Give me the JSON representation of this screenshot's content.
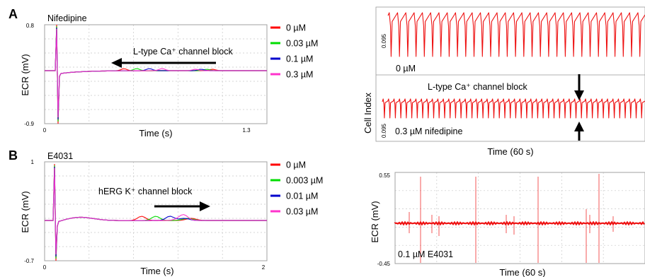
{
  "panels": {
    "a": "A",
    "b": "B"
  },
  "colors": {
    "c0": "#ff0000",
    "c1": "#00dd00",
    "c2": "#0000cc",
    "c3": "#ff33cc",
    "grid": "#c8c8c8",
    "axis": "#808080",
    "trace": "#ee1111"
  },
  "chart_data": [
    {
      "id": "ecr-nifedipine",
      "type": "line",
      "title": "Nifedipine",
      "xlabel": "Time (s)",
      "ylabel": "ECR (mV)",
      "xlim": [
        0,
        1.3
      ],
      "ylim": [
        -0.9,
        0.8
      ],
      "x_ticks": [
        "0",
        "1.3"
      ],
      "y_ticks": [
        "0.8",
        "-0.9"
      ],
      "grid": true,
      "legend_position": "right",
      "annotation": "L-type Ca⁺ channel block",
      "series": [
        {
          "name": "0 µM",
          "color": "#ff0000"
        },
        {
          "name": "0.03 µM",
          "color": "#00dd00"
        },
        {
          "name": "0.1 µM",
          "color": "#0000cc"
        },
        {
          "name": "0.3 µM",
          "color": "#ff33cc"
        }
      ]
    },
    {
      "id": "ecr-e4031",
      "type": "line",
      "title": "E4031",
      "xlabel": "Time (s)",
      "ylabel": "ECR (mV)",
      "xlim": [
        0,
        2
      ],
      "ylim": [
        -0.7,
        1
      ],
      "x_ticks": [
        "0",
        "2"
      ],
      "y_ticks": [
        "1",
        "-0.7"
      ],
      "grid": true,
      "legend_position": "right",
      "annotation": "hERG K⁺ channel block",
      "series": [
        {
          "name": "0 µM",
          "color": "#ff0000"
        },
        {
          "name": "0.003 µM",
          "color": "#00dd00"
        },
        {
          "name": "0.01 µM",
          "color": "#0000cc"
        },
        {
          "name": "0.03 µM",
          "color": "#ff33cc"
        }
      ]
    },
    {
      "id": "cell-index-nifedipine",
      "type": "line",
      "xlabel": "Time (60 s)",
      "ylabel": "Cell Index",
      "panels": [
        {
          "label": "0 µM",
          "y_tick": "0.095",
          "beats": 31
        },
        {
          "label": "0.3 µM nifedipine",
          "y_tick": "0.095",
          "beats": 48
        }
      ],
      "annotation": "L-type Ca⁺ channel block"
    },
    {
      "id": "ecr-e4031-long",
      "type": "line",
      "xlabel": "Time (60 s)",
      "ylabel": "ECR (mV)",
      "ylim": [
        -0.45,
        0.55
      ],
      "y_ticks": [
        "0.55",
        "-0.45"
      ],
      "label": "0.1 µM E4031"
    }
  ]
}
